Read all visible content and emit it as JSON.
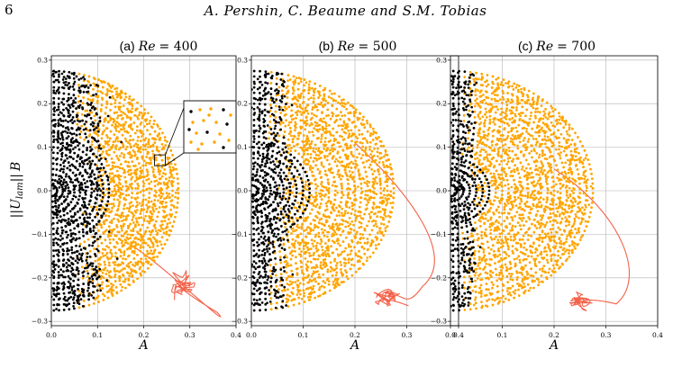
{
  "header": {
    "page_number": "6",
    "authors": "A. Pershin, C. Beaume and S.M. Tobias"
  },
  "figure": {
    "ylabel": "||U_lam|| B",
    "ylabel_parts": {
      "bars_open": "||",
      "U": "U",
      "sub": "lam",
      "bars_close": "||",
      "B": "B"
    },
    "colors": {
      "laminar": "#000000",
      "chaotic": "#ffa500",
      "trajectory": "#f4624a",
      "grid": "#b0b0b0"
    },
    "inset_in_panel_a": true
  },
  "chart_data": [
    {
      "type": "scatter",
      "panel_label": "(a)",
      "title_var": "Re",
      "title_eq": "= 400",
      "xlabel": "A",
      "xlim": [
        0.0,
        0.4
      ],
      "ylim": [
        -0.31,
        0.31
      ],
      "xticks": [
        "0.0",
        "0.1",
        "0.2",
        "0.3",
        "0.4"
      ],
      "yticks": [
        "0.3",
        "0.2",
        "0.1",
        "0.0",
        "−0.1",
        "−0.2",
        "−0.3"
      ],
      "grid": true,
      "series": [
        {
          "color": "#000000",
          "description": "laminarising initial conditions (concentric arcs near origin plus scattered points at small A)"
        },
        {
          "color": "#ffa500",
          "description": "initial conditions leading to turbulence (semicircle of radius ~0.27)"
        },
        {
          "color": "#f4624a",
          "description": "trajectory converging to chaotic attractor near A=0.28, B=-0.22"
        }
      ],
      "inset": {
        "zoom_center": [
          0.235,
          0.07
        ]
      }
    },
    {
      "type": "scatter",
      "panel_label": "(b)",
      "title_var": "Re",
      "title_eq": "= 500",
      "xlabel": "A",
      "xlim": [
        0.0,
        0.4
      ],
      "ylim": [
        -0.31,
        0.31
      ],
      "xticks": [
        "0.0",
        "0.1",
        "0.2",
        "0.3",
        "0.4"
      ],
      "yticks": [
        "0.3",
        "0.2",
        "0.1",
        "0.0",
        "−0.1",
        "−0.2",
        "−0.3"
      ],
      "grid": true,
      "series": [
        {
          "color": "#000000",
          "description": "laminarising initial conditions"
        },
        {
          "color": "#ffa500",
          "description": "initial conditions leading to turbulence"
        },
        {
          "color": "#f4624a",
          "description": "trajectory converging to chaotic attractor near A=0.27, B=-0.24"
        }
      ]
    },
    {
      "type": "scatter",
      "panel_label": "(c)",
      "title_var": "Re",
      "title_eq": "= 700",
      "xlabel": "A",
      "xlim": [
        0.0,
        0.4
      ],
      "ylim": [
        -0.31,
        0.31
      ],
      "xticks": [
        "0.0",
        "0.1",
        "0.2",
        "0.3",
        "0.4"
      ],
      "yticks": [
        "0.3",
        "0.2",
        "0.1",
        "0.0",
        "−0.1",
        "−0.2",
        "−0.3"
      ],
      "grid": true,
      "series": [
        {
          "color": "#000000",
          "description": "laminarising initial conditions"
        },
        {
          "color": "#ffa500",
          "description": "initial conditions leading to turbulence"
        },
        {
          "color": "#f4624a",
          "description": "trajectory converging to chaotic attractor near A=0.25, B=-0.25"
        }
      ]
    }
  ]
}
